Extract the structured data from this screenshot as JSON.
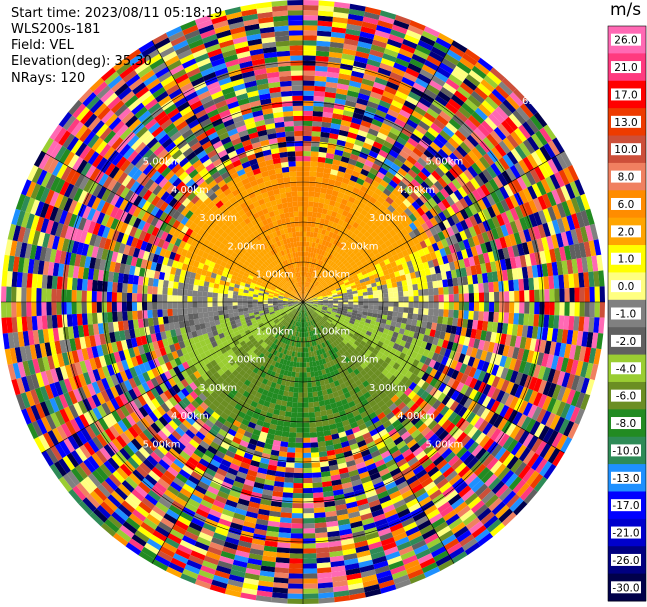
{
  "header": {
    "start_time": "Start time: 2023/08/11 05:18:19",
    "instrument": "WLS200s-181",
    "field": "Field: VEL",
    "elevation": "Elevation(deg): 35.30",
    "nrays": "NRays: 120"
  },
  "chart_data": {
    "type": "heatmap",
    "projection": "polar-ppi",
    "field": "VEL",
    "unit": "m/s",
    "nrays": 120,
    "range_rings_km": [
      1,
      2,
      3,
      4,
      5,
      6
    ],
    "range_labels": [
      "1.00km",
      "2.00km",
      "3.00km",
      "4.00km",
      "5.00km"
    ],
    "range_label_cut": "6.",
    "colorbar": {
      "ticks": [
        "26.0",
        "21.0",
        "17.0",
        "13.0",
        "10.0",
        "8.0",
        "6.0",
        "2.0",
        "1.0",
        "0.0",
        "-1.0",
        "-2.0",
        "-4.0",
        "-6.0",
        "-8.0",
        "-10.0",
        "-13.0",
        "-17.0",
        "-21.0",
        "-26.0",
        "-30.0"
      ],
      "colors": [
        "#ff69b4",
        "#ff3a7f",
        "#ff0000",
        "#ee3b00",
        "#cd4f39",
        "#f08060",
        "#ff8c00",
        "#ffa500",
        "#ffff00",
        "#ffff80",
        "#808080",
        "#606060",
        "#9acd32",
        "#6b8e23",
        "#228b22",
        "#2e8b57",
        "#1e90ff",
        "#0000ff",
        "#0000cd",
        "#000080",
        "#00004a"
      ]
    },
    "scene": {
      "near_range_km": 1.5,
      "inner_range_km": 3.2,
      "north_positive": true
    }
  }
}
